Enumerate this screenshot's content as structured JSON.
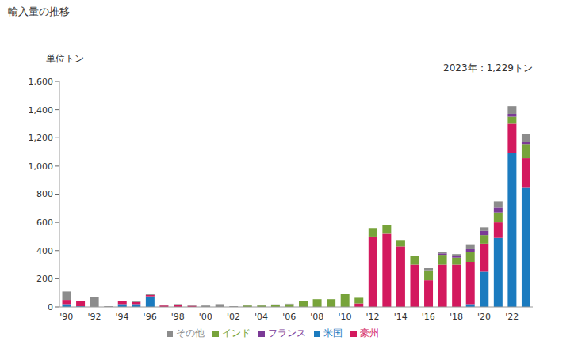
{
  "chart_data": {
    "type": "bar",
    "title": "輸入量の推移",
    "y_label": "単位トン",
    "annotation": "2023年：1,229トン",
    "categories": [
      "'90",
      null,
      "'92",
      null,
      "'94",
      null,
      "'96",
      null,
      "'98",
      null,
      "'00",
      null,
      "'02",
      null,
      "'04",
      null,
      "'06",
      null,
      "'08",
      null,
      "'10",
      null,
      "'12",
      null,
      "'14",
      null,
      "'16",
      null,
      "'18",
      null,
      "'20",
      null,
      "'22",
      null
    ],
    "series": [
      {
        "name": "米国",
        "color": "#1b7bbf",
        "values": [
          20,
          5,
          0,
          0,
          20,
          20,
          75,
          0,
          0,
          0,
          0,
          0,
          0,
          0,
          0,
          0,
          0,
          0,
          0,
          0,
          0,
          0,
          0,
          0,
          0,
          0,
          0,
          0,
          0,
          20,
          250,
          490,
          1090,
          845
        ]
      },
      {
        "name": "豪州",
        "color": "#d3195e",
        "values": [
          30,
          35,
          0,
          0,
          20,
          15,
          10,
          10,
          15,
          8,
          0,
          0,
          0,
          0,
          0,
          0,
          0,
          0,
          0,
          0,
          0,
          25,
          500,
          520,
          430,
          300,
          190,
          300,
          300,
          300,
          200,
          110,
          210,
          210
        ]
      },
      {
        "name": "インド",
        "color": "#77a33a",
        "values": [
          0,
          0,
          0,
          0,
          0,
          0,
          0,
          0,
          0,
          0,
          0,
          0,
          0,
          10,
          10,
          15,
          20,
          40,
          55,
          55,
          95,
          40,
          60,
          60,
          40,
          65,
          70,
          70,
          50,
          70,
          60,
          70,
          50,
          100
        ]
      },
      {
        "name": "フランス",
        "color": "#7b3a96",
        "values": [
          0,
          0,
          0,
          0,
          0,
          0,
          0,
          0,
          0,
          0,
          0,
          0,
          0,
          0,
          0,
          0,
          0,
          0,
          0,
          0,
          0,
          0,
          0,
          0,
          0,
          0,
          0,
          10,
          10,
          20,
          30,
          35,
          20,
          15
        ]
      },
      {
        "name": "その他",
        "color": "#8c8c8c",
        "values": [
          60,
          0,
          70,
          5,
          5,
          5,
          5,
          3,
          5,
          3,
          10,
          20,
          5,
          5,
          3,
          3,
          3,
          3,
          0,
          0,
          0,
          0,
          0,
          0,
          0,
          0,
          15,
          10,
          15,
          30,
          25,
          45,
          55,
          59
        ]
      }
    ],
    "ylim": [
      0,
      1600
    ],
    "yticks": [
      0,
      200,
      400,
      600,
      800,
      {
        "value": 1000,
        "label": "1,000"
      },
      {
        "value": 1200,
        "label": "1,200"
      },
      {
        "value": 1400,
        "label": "1,400"
      },
      {
        "value": 1600,
        "label": "1,600"
      }
    ],
    "stacked": true,
    "legend": "bottom",
    "grid": false
  }
}
